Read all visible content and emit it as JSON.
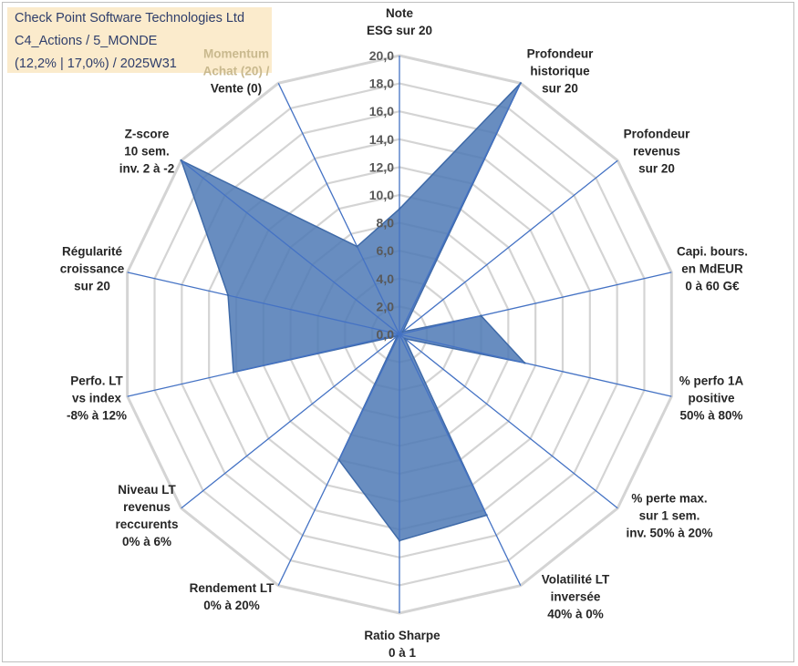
{
  "info": {
    "company": "Check Point Software Technologies Ltd",
    "category": "C4_Actions / 5_MONDE",
    "stats": "(12,2% | 17,0%) / 2025W31"
  },
  "chart_data": {
    "type": "radar",
    "title": "",
    "axes": [
      [
        "Note",
        "ESG sur 20"
      ],
      [
        "Profondeur",
        "historique",
        "sur 20"
      ],
      [
        "Profondeur",
        "revenus",
        "sur 20"
      ],
      [
        "Capi. bours.",
        "en MdEUR",
        "0 à 60 G€"
      ],
      [
        "% perfo 1A",
        "positive",
        "50% à 80%"
      ],
      [
        "% perte max.",
        "sur 1 sem.",
        "inv. 50% à 20%"
      ],
      [
        "Volatilité LT",
        "inversée",
        "40% à 0%"
      ],
      [
        "Ratio Sharpe",
        "0 à 1"
      ],
      [
        "Rendement LT",
        "0% à 20%"
      ],
      [
        "Niveau LT",
        "revenus",
        "reccurents",
        "0% à 6%"
      ],
      [
        "Perfo. LT",
        "vs index",
        "-8% à 12%"
      ],
      [
        "Régularité",
        "croissance",
        "sur 20"
      ],
      [
        "Z-score",
        "10 sem.",
        "inv. 2 à -2"
      ],
      [
        "Momentum",
        "Achat (20) /",
        "Vente (0)"
      ]
    ],
    "values": [
      9.0,
      20.0,
      0.3,
      6.0,
      9.2,
      0.5,
      14.4,
      14.8,
      10.0,
      0.2,
      12.2,
      12.6,
      20.0,
      7.0
    ],
    "rlim": [
      0,
      20
    ],
    "ticks": [
      "0,0",
      "2,0",
      "4,0",
      "6,0",
      "8,0",
      "10,0",
      "12,0",
      "14,0",
      "16,0",
      "18,0",
      "20,0"
    ],
    "colors": {
      "fill": "#4e79b5",
      "stroke": "#3f6aa8",
      "spoke": "#4472c4",
      "grid": "#d4d4d4"
    }
  }
}
